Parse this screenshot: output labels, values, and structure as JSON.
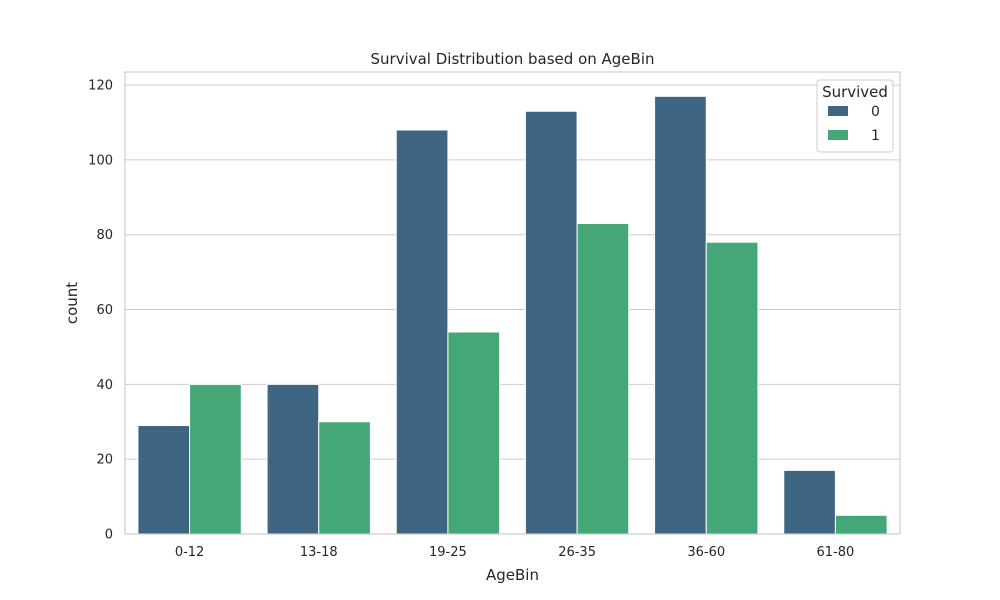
{
  "chart_data": {
    "type": "bar",
    "title": "Survival Distribution based on AgeBin",
    "xlabel": "AgeBin",
    "ylabel": "count",
    "categories": [
      "0-12",
      "13-18",
      "19-25",
      "26-35",
      "36-60",
      "61-80"
    ],
    "series": [
      {
        "name": "0",
        "values": [
          29,
          40,
          108,
          113,
          117,
          17
        ],
        "color": "#3e6682"
      },
      {
        "name": "1",
        "values": [
          40,
          30,
          54,
          83,
          78,
          5
        ],
        "color": "#45a776"
      }
    ],
    "ylim": [
      0,
      123.5
    ],
    "yticks": [
      0,
      20,
      40,
      60,
      80,
      100,
      120
    ],
    "grid": true,
    "legend": {
      "title": "Survived",
      "placement": "top-right"
    }
  }
}
